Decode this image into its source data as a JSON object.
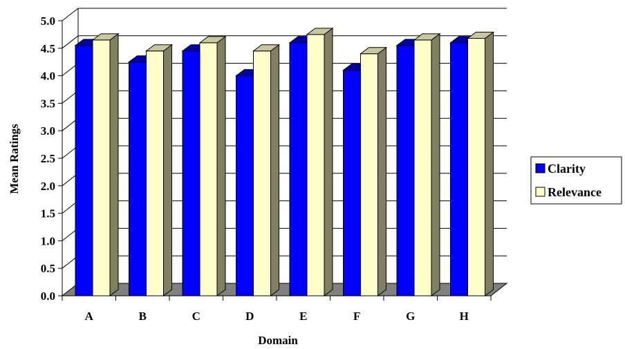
{
  "chart_data": {
    "type": "bar",
    "title": "",
    "xlabel": "Domain",
    "ylabel": "Mean Ratings",
    "ylim": [
      0,
      5
    ],
    "y_ticks": [
      "0.0",
      "0.5",
      "1.0",
      "1.5",
      "2.0",
      "2.5",
      "3.0",
      "3.5",
      "4.0",
      "4.5",
      "5.0"
    ],
    "categories": [
      "A",
      "B",
      "C",
      "D",
      "E",
      "F",
      "G",
      "H"
    ],
    "series": [
      {
        "name": "Clarity",
        "values": [
          4.55,
          4.25,
          4.45,
          4.0,
          4.6,
          4.1,
          4.55,
          4.6
        ],
        "color": "#0000ff"
      },
      {
        "name": "Relevance",
        "values": [
          4.65,
          4.45,
          4.6,
          4.45,
          4.75,
          4.4,
          4.65,
          4.68
        ],
        "color": "#ffffcc"
      }
    ],
    "grid": true,
    "style": "3d",
    "legend": "right"
  }
}
